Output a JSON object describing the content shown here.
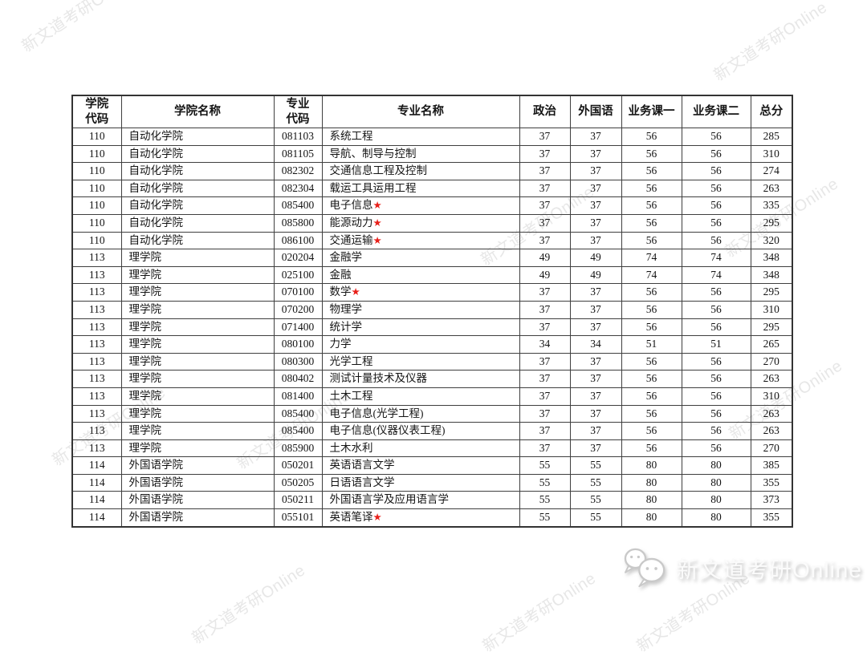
{
  "watermark": {
    "text": "新文道考研Online",
    "color_hex": "#e7e7e7"
  },
  "star_symbol": "★",
  "logo": {
    "icon": "wechat-icon",
    "text": "新文道考研Online"
  },
  "table": {
    "headers": [
      {
        "label": "学院\n代码"
      },
      {
        "label": "学院名称"
      },
      {
        "label": "专业\n代码"
      },
      {
        "label": "专业名称"
      },
      {
        "label": "政治"
      },
      {
        "label": "外国语"
      },
      {
        "label": "业务课一"
      },
      {
        "label": "业务课二"
      },
      {
        "label": "总分"
      }
    ],
    "rows": [
      {
        "college_code": "110",
        "college_name": "自动化学院",
        "major_code": "081103",
        "major_name": "系统工程",
        "star": false,
        "politics": "37",
        "foreign_language": "37",
        "course1": "56",
        "course2": "56",
        "total": "285"
      },
      {
        "college_code": "110",
        "college_name": "自动化学院",
        "major_code": "081105",
        "major_name": "导航、制导与控制",
        "star": false,
        "politics": "37",
        "foreign_language": "37",
        "course1": "56",
        "course2": "56",
        "total": "310"
      },
      {
        "college_code": "110",
        "college_name": "自动化学院",
        "major_code": "082302",
        "major_name": "交通信息工程及控制",
        "star": false,
        "politics": "37",
        "foreign_language": "37",
        "course1": "56",
        "course2": "56",
        "total": "274"
      },
      {
        "college_code": "110",
        "college_name": "自动化学院",
        "major_code": "082304",
        "major_name": "载运工具运用工程",
        "star": false,
        "politics": "37",
        "foreign_language": "37",
        "course1": "56",
        "course2": "56",
        "total": "263"
      },
      {
        "college_code": "110",
        "college_name": "自动化学院",
        "major_code": "085400",
        "major_name": "电子信息",
        "star": true,
        "politics": "37",
        "foreign_language": "37",
        "course1": "56",
        "course2": "56",
        "total": "335"
      },
      {
        "college_code": "110",
        "college_name": "自动化学院",
        "major_code": "085800",
        "major_name": "能源动力",
        "star": true,
        "politics": "37",
        "foreign_language": "37",
        "course1": "56",
        "course2": "56",
        "total": "295"
      },
      {
        "college_code": "110",
        "college_name": "自动化学院",
        "major_code": "086100",
        "major_name": "交通运输",
        "star": true,
        "politics": "37",
        "foreign_language": "37",
        "course1": "56",
        "course2": "56",
        "total": "320"
      },
      {
        "college_code": "113",
        "college_name": "理学院",
        "major_code": "020204",
        "major_name": "金融学",
        "star": false,
        "politics": "49",
        "foreign_language": "49",
        "course1": "74",
        "course2": "74",
        "total": "348"
      },
      {
        "college_code": "113",
        "college_name": "理学院",
        "major_code": "025100",
        "major_name": "金融",
        "star": false,
        "politics": "49",
        "foreign_language": "49",
        "course1": "74",
        "course2": "74",
        "total": "348"
      },
      {
        "college_code": "113",
        "college_name": "理学院",
        "major_code": "070100",
        "major_name": "数学",
        "star": true,
        "politics": "37",
        "foreign_language": "37",
        "course1": "56",
        "course2": "56",
        "total": "295"
      },
      {
        "college_code": "113",
        "college_name": "理学院",
        "major_code": "070200",
        "major_name": "物理学",
        "star": false,
        "politics": "37",
        "foreign_language": "37",
        "course1": "56",
        "course2": "56",
        "total": "310"
      },
      {
        "college_code": "113",
        "college_name": "理学院",
        "major_code": "071400",
        "major_name": "统计学",
        "star": false,
        "politics": "37",
        "foreign_language": "37",
        "course1": "56",
        "course2": "56",
        "total": "295"
      },
      {
        "college_code": "113",
        "college_name": "理学院",
        "major_code": "080100",
        "major_name": "力学",
        "star": false,
        "politics": "34",
        "foreign_language": "34",
        "course1": "51",
        "course2": "51",
        "total": "265"
      },
      {
        "college_code": "113",
        "college_name": "理学院",
        "major_code": "080300",
        "major_name": "光学工程",
        "star": false,
        "politics": "37",
        "foreign_language": "37",
        "course1": "56",
        "course2": "56",
        "total": "270"
      },
      {
        "college_code": "113",
        "college_name": "理学院",
        "major_code": "080402",
        "major_name": "测试计量技术及仪器",
        "star": false,
        "politics": "37",
        "foreign_language": "37",
        "course1": "56",
        "course2": "56",
        "total": "263"
      },
      {
        "college_code": "113",
        "college_name": "理学院",
        "major_code": "081400",
        "major_name": "土木工程",
        "star": false,
        "politics": "37",
        "foreign_language": "37",
        "course1": "56",
        "course2": "56",
        "total": "310"
      },
      {
        "college_code": "113",
        "college_name": "理学院",
        "major_code": "085400",
        "major_name": "电子信息(光学工程)",
        "star": false,
        "politics": "37",
        "foreign_language": "37",
        "course1": "56",
        "course2": "56",
        "total": "263"
      },
      {
        "college_code": "113",
        "college_name": "理学院",
        "major_code": "085400",
        "major_name": "电子信息(仪器仪表工程)",
        "star": false,
        "politics": "37",
        "foreign_language": "37",
        "course1": "56",
        "course2": "56",
        "total": "263"
      },
      {
        "college_code": "113",
        "college_name": "理学院",
        "major_code": "085900",
        "major_name": "土木水利",
        "star": false,
        "politics": "37",
        "foreign_language": "37",
        "course1": "56",
        "course2": "56",
        "total": "270"
      },
      {
        "college_code": "114",
        "college_name": "外国语学院",
        "major_code": "050201",
        "major_name": "英语语言文学",
        "star": false,
        "politics": "55",
        "foreign_language": "55",
        "course1": "80",
        "course2": "80",
        "total": "385"
      },
      {
        "college_code": "114",
        "college_name": "外国语学院",
        "major_code": "050205",
        "major_name": "日语语言文学",
        "star": false,
        "politics": "55",
        "foreign_language": "55",
        "course1": "80",
        "course2": "80",
        "total": "355"
      },
      {
        "college_code": "114",
        "college_name": "外国语学院",
        "major_code": "050211",
        "major_name": "外国语言学及应用语言学",
        "star": false,
        "politics": "55",
        "foreign_language": "55",
        "course1": "80",
        "course2": "80",
        "total": "373"
      },
      {
        "college_code": "114",
        "college_name": "外国语学院",
        "major_code": "055101",
        "major_name": "英语笔译",
        "star": true,
        "politics": "55",
        "foreign_language": "55",
        "course1": "80",
        "course2": "80",
        "total": "355"
      }
    ]
  }
}
